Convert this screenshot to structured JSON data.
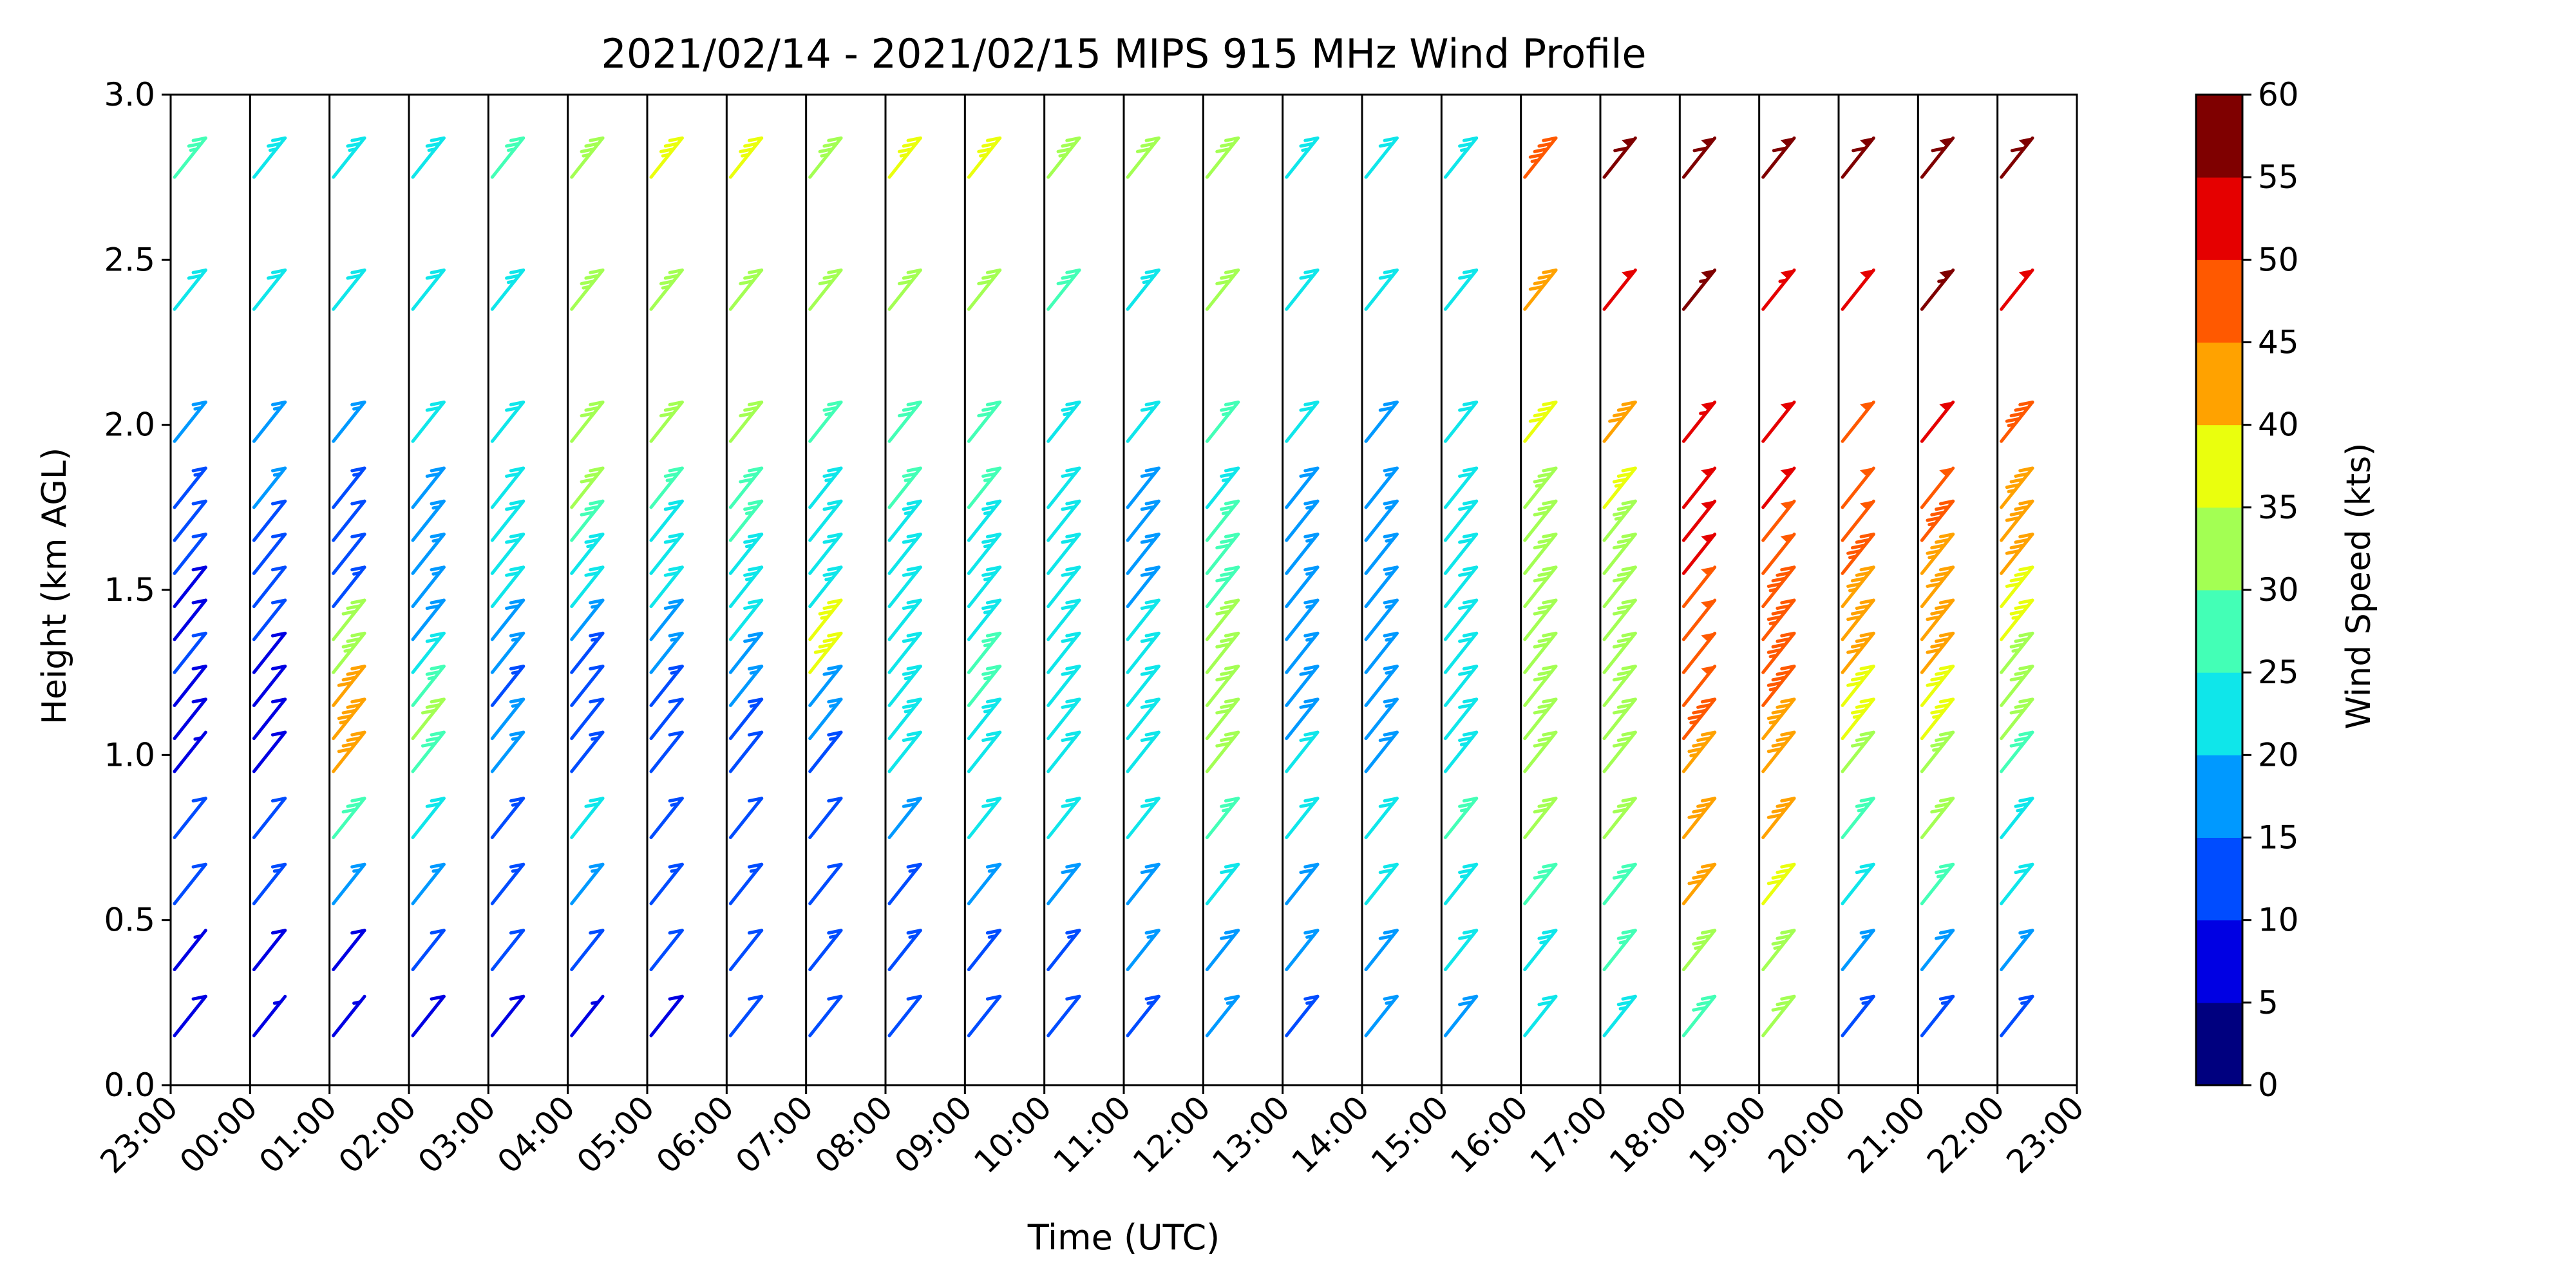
{
  "chart_data": {
    "type": "wind-barb",
    "title": "2021/02/14 - 2021/02/15 MIPS 915 MHz Wind Profile",
    "xlabel": "Time (UTC)",
    "ylabel": "Height (km AGL)",
    "ylim": [
      0,
      3.0
    ],
    "y_ticks": [
      "0.0",
      "0.5",
      "1.0",
      "1.5",
      "2.0",
      "2.5",
      "3.0"
    ],
    "x_ticks": [
      "23:00",
      "00:00",
      "01:00",
      "02:00",
      "03:00",
      "04:00",
      "05:00",
      "06:00",
      "07:00",
      "08:00",
      "09:00",
      "10:00",
      "11:00",
      "12:00",
      "13:00",
      "14:00",
      "15:00",
      "16:00",
      "17:00",
      "18:00",
      "19:00",
      "20:00",
      "21:00",
      "22:00",
      "23:00"
    ],
    "colorbar": {
      "label": "Wind Speed (kts)",
      "ticks": [
        "0",
        "5",
        "10",
        "15",
        "20",
        "25",
        "30",
        "35",
        "40",
        "45",
        "50",
        "55",
        "60"
      ],
      "colors": [
        "#00007f",
        "#0000e3",
        "#004cff",
        "#0099ff",
        "#0fe6ea",
        "#43ffb6",
        "#a3ff53",
        "#eaff0d",
        "#ffa200",
        "#ff5900",
        "#e50000",
        "#7f0000"
      ]
    },
    "grid": "vertical lines at each hour",
    "legend": "colorbar right",
    "heights_km": [
      0.15,
      0.35,
      0.55,
      0.75,
      0.95,
      1.05,
      1.15,
      1.25,
      1.35,
      1.45,
      1.55,
      1.65,
      1.75,
      1.95,
      2.35,
      2.75
    ],
    "speed_kts_by_hour": [
      [
        8,
        6,
        12,
        10,
        7,
        8,
        9,
        10,
        8,
        9,
        12,
        10,
        14,
        16,
        20,
        26
      ],
      [
        6,
        8,
        14,
        12,
        8,
        8,
        8,
        9,
        10,
        10,
        10,
        12,
        15,
        16,
        20,
        24
      ],
      [
        5,
        8,
        16,
        28,
        42,
        44,
        40,
        34,
        30,
        14,
        12,
        12,
        14,
        16,
        20,
        24
      ],
      [
        8,
        10,
        16,
        22,
        28,
        30,
        26,
        22,
        18,
        16,
        16,
        16,
        18,
        20,
        22,
        24
      ],
      [
        8,
        10,
        14,
        14,
        16,
        16,
        14,
        16,
        18,
        20,
        20,
        20,
        22,
        22,
        24,
        26
      ],
      [
        6,
        12,
        16,
        20,
        14,
        10,
        12,
        14,
        16,
        20,
        24,
        28,
        30,
        32,
        34,
        34
      ],
      [
        8,
        10,
        14,
        14,
        12,
        12,
        14,
        16,
        18,
        20,
        20,
        22,
        26,
        30,
        34,
        36
      ],
      [
        10,
        12,
        14,
        12,
        12,
        14,
        16,
        18,
        22,
        24,
        24,
        26,
        28,
        30,
        32,
        36
      ],
      [
        12,
        14,
        12,
        12,
        14,
        16,
        18,
        38,
        36,
        24,
        22,
        22,
        24,
        26,
        30,
        34
      ],
      [
        12,
        14,
        14,
        18,
        22,
        24,
        24,
        22,
        22,
        22,
        22,
        24,
        26,
        28,
        32,
        36
      ],
      [
        12,
        14,
        16,
        20,
        22,
        24,
        26,
        26,
        24,
        24,
        24,
        24,
        26,
        28,
        32,
        36
      ],
      [
        12,
        14,
        18,
        20,
        20,
        22,
        22,
        22,
        22,
        20,
        20,
        20,
        22,
        24,
        28,
        34
      ],
      [
        14,
        16,
        18,
        20,
        20,
        20,
        20,
        20,
        20,
        18,
        18,
        18,
        18,
        20,
        24,
        30
      ],
      [
        16,
        18,
        22,
        26,
        30,
        30,
        30,
        30,
        30,
        28,
        28,
        26,
        24,
        26,
        30,
        32
      ],
      [
        14,
        16,
        18,
        20,
        20,
        18,
        18,
        16,
        16,
        16,
        16,
        16,
        18,
        20,
        22,
        24
      ],
      [
        16,
        18,
        20,
        22,
        18,
        16,
        16,
        16,
        16,
        16,
        16,
        16,
        16,
        18,
        20,
        22
      ],
      [
        18,
        22,
        24,
        26,
        24,
        22,
        22,
        22,
        22,
        20,
        20,
        20,
        20,
        20,
        22,
        24
      ],
      [
        20,
        24,
        28,
        30,
        30,
        30,
        30,
        30,
        30,
        30,
        30,
        32,
        34,
        38,
        42,
        46
      ],
      [
        24,
        26,
        28,
        30,
        30,
        30,
        30,
        30,
        30,
        30,
        32,
        34,
        36,
        40,
        52,
        58
      ],
      [
        28,
        34,
        40,
        42,
        44,
        46,
        48,
        48,
        48,
        48,
        50,
        50,
        52,
        54,
        56,
        58
      ],
      [
        30,
        34,
        38,
        40,
        42,
        44,
        46,
        46,
        46,
        46,
        48,
        48,
        50,
        52,
        54,
        58
      ],
      [
        14,
        16,
        20,
        26,
        32,
        36,
        38,
        40,
        42,
        44,
        46,
        48,
        48,
        48,
        50,
        58
      ],
      [
        14,
        18,
        26,
        30,
        34,
        36,
        38,
        40,
        40,
        42,
        44,
        46,
        48,
        50,
        56,
        58
      ],
      [
        14,
        16,
        20,
        24,
        28,
        30,
        32,
        34,
        36,
        38,
        40,
        42,
        44,
        46,
        52,
        58
      ]
    ]
  }
}
